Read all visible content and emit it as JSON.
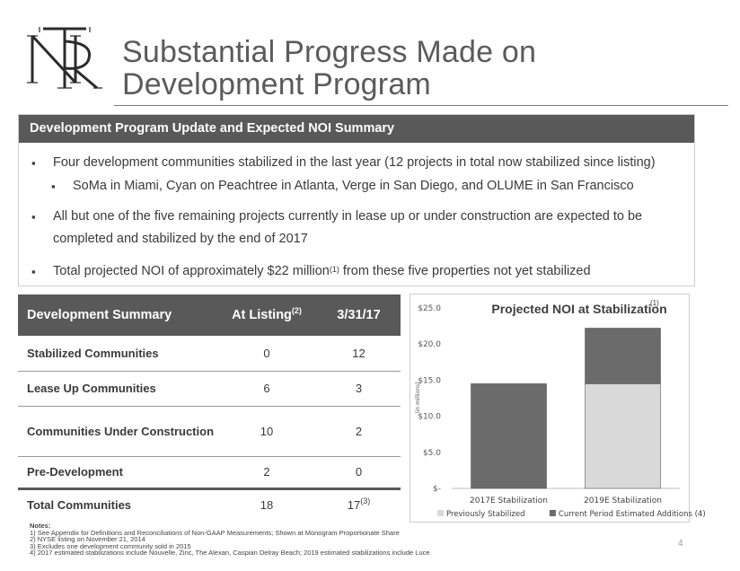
{
  "slide": {
    "title_line1": "Substantial Progress Made on",
    "title_line2": "Development Program",
    "page_number": "4"
  },
  "update": {
    "header": "Development Program Update and Expected NOI Summary",
    "bullet1": "Four development communities stabilized in the last year (12 projects in total now stabilized since listing)",
    "bullet1_sub": "SoMa in Miami, Cyan on Peachtree in Atlanta, Verge in San Diego, and OLUME in San Francisco",
    "bullet2": "All but one of the five remaining projects currently in lease up or under construction are expected to be completed and stabilized by the end of 2017",
    "bullet3_pre": "Total projected NOI of approximately $22 million",
    "bullet3_sup": "(1)",
    "bullet3_post": " from these five properties not yet stabilized"
  },
  "summary_table": {
    "headers": [
      "Development Summary",
      "At Listing",
      "3/31/17"
    ],
    "header_sup": "(2)",
    "rows": [
      {
        "label": "Stabilized Communities",
        "listing": "0",
        "current": "12"
      },
      {
        "label": "Lease Up Communities",
        "listing": "6",
        "current": "3"
      },
      {
        "label": "Communities Under Construction",
        "listing": "10",
        "current": "2"
      },
      {
        "label": "Pre-Development",
        "listing": "2",
        "current": "0"
      },
      {
        "label": "Total Communities",
        "listing": "18",
        "current": "17",
        "current_sup": "(3)"
      }
    ]
  },
  "chart_data": {
    "type": "bar",
    "stacked": true,
    "title": "Projected NOI at Stabilization",
    "title_sup": "(1)",
    "ylabel": "(in millions)",
    "ylim": [
      0,
      25
    ],
    "yticks": [
      "$-",
      "$5.0",
      "$10.0",
      "$15.0",
      "$20.0",
      "$25.0"
    ],
    "categories": [
      "2017E Stabilization",
      "2019E Stabilization"
    ],
    "series": [
      {
        "name": "Previously Stabilized",
        "color": "#d9d9d9",
        "values": [
          0,
          14.5
        ]
      },
      {
        "name": "Current Period Estimated Additions (4)",
        "color": "#6b6b6b",
        "values": [
          14.5,
          7.7
        ]
      }
    ],
    "legend": "bottom"
  },
  "notes": {
    "heading": "Notes:",
    "items": [
      "1)  See Appendix for Definitions and Reconciliations of Non-GAAP Measurements; Shown at Monogram Proportionate Share",
      "2)  NYSE listing on November 21, 2014",
      "3)  Excludes one development community sold in 2015",
      "4)  2017 estimated stabilizations include Nouvelle, Zinc, The Alexan, Caspian Delray Beach; 2019 estimated stabilizations include Luce"
    ]
  }
}
